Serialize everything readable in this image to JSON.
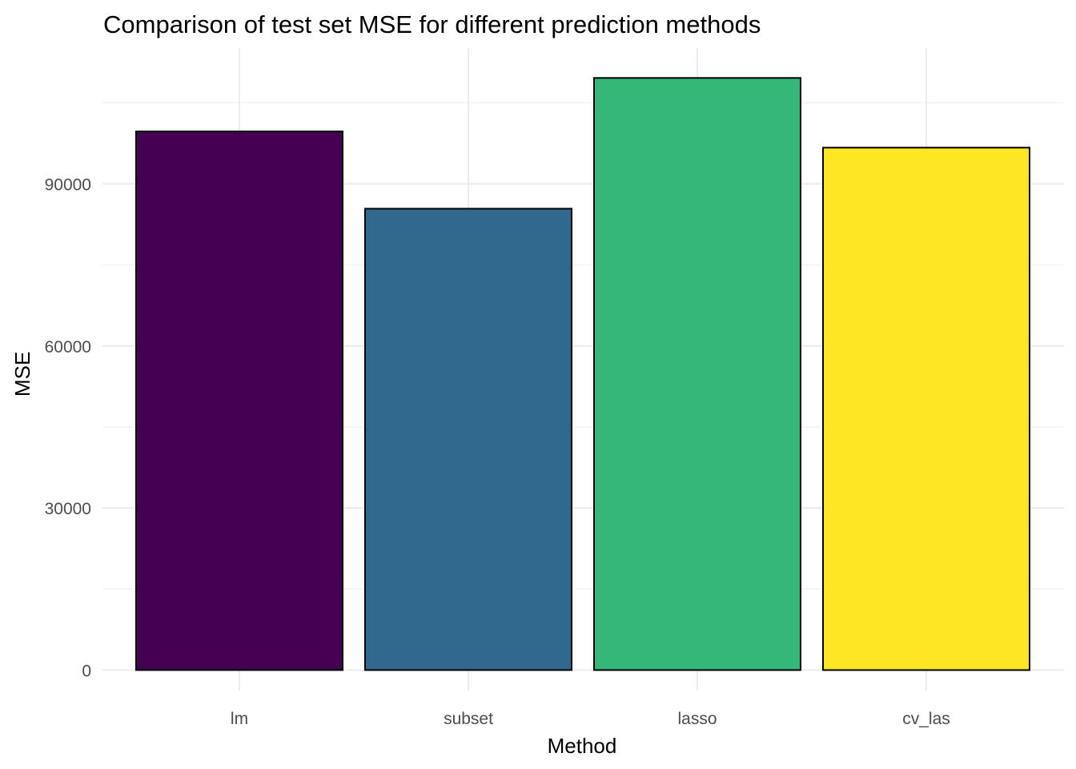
{
  "chart_data": {
    "type": "bar",
    "title": "Comparison of test set MSE for different prediction methods",
    "xlabel": "Method",
    "ylabel": "MSE",
    "categories": [
      "lm",
      "subset",
      "lasso",
      "cv_las"
    ],
    "values": [
      99700,
      85400,
      109600,
      96700
    ],
    "colors": [
      "#440154",
      "#31688E",
      "#35B779",
      "#FDE725"
    ],
    "ylim": [
      0,
      110000
    ],
    "yticks": [
      0,
      30000,
      60000,
      90000
    ],
    "ytick_labels": [
      "0",
      "30000",
      "60000",
      "90000"
    ],
    "grid": true,
    "legend": "none"
  }
}
